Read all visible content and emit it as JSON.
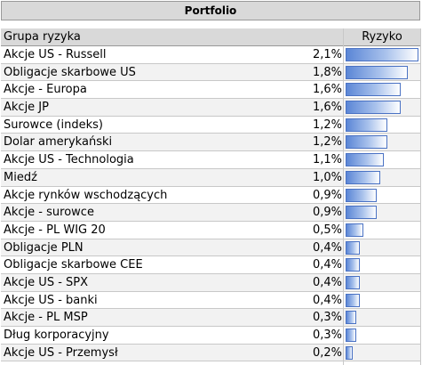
{
  "title": "Portfolio",
  "headers": {
    "group": "Grupa ryzyka",
    "risk": "Ryzyko"
  },
  "colors": {
    "header_bg": "#d9d9d9",
    "bar": "#5b86d6",
    "bar_border": "#4a72c4",
    "alt_row": "#f2f2f2"
  },
  "max_risk": 2.1,
  "rows": [
    {
      "name": "Akcje US - Russell",
      "value": "2,1%",
      "risk": 2.1
    },
    {
      "name": "Obligacje skarbowe US",
      "value": "1,8%",
      "risk": 1.8
    },
    {
      "name": "Akcje - Europa",
      "value": "1,6%",
      "risk": 1.6
    },
    {
      "name": "Akcje JP",
      "value": "1,6%",
      "risk": 1.6
    },
    {
      "name": "Surowce (indeks)",
      "value": "1,2%",
      "risk": 1.2
    },
    {
      "name": "Dolar amerykański",
      "value": "1,2%",
      "risk": 1.2
    },
    {
      "name": "Akcje US - Technologia",
      "value": "1,1%",
      "risk": 1.1
    },
    {
      "name": "Miedź",
      "value": "1,0%",
      "risk": 1.0
    },
    {
      "name": "Akcje rynków wschodzących",
      "value": "0,9%",
      "risk": 0.9
    },
    {
      "name": "Akcje - surowce",
      "value": "0,9%",
      "risk": 0.9
    },
    {
      "name": "Akcje - PL WIG 20",
      "value": "0,5%",
      "risk": 0.5
    },
    {
      "name": "Obligacje PLN",
      "value": "0,4%",
      "risk": 0.4
    },
    {
      "name": "Obligacje skarbowe CEE",
      "value": "0,4%",
      "risk": 0.4
    },
    {
      "name": "Akcje US - SPX",
      "value": "0,4%",
      "risk": 0.4
    },
    {
      "name": "Akcje US - banki",
      "value": "0,4%",
      "risk": 0.4
    },
    {
      "name": "Akcje - PL MSP",
      "value": "0,3%",
      "risk": 0.3
    },
    {
      "name": "Dług korporacyjny",
      "value": "0,3%",
      "risk": 0.3
    },
    {
      "name": "Akcje US - Przemysł",
      "value": "0,2%",
      "risk": 0.2
    }
  ]
}
